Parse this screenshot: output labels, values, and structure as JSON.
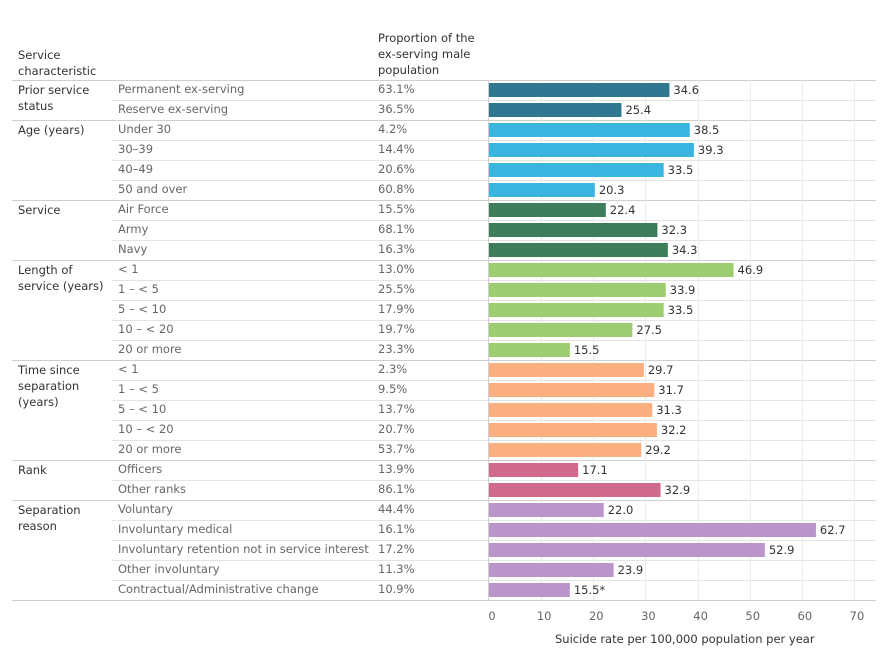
{
  "headers": {
    "characteristic": "Service characteristic",
    "proportion": "Proportion of the ex-serving male population"
  },
  "colors": {
    "Prior service status": "#2e7891",
    "Age (years)": "#3ab5e0",
    "Service": "#3d7d5a",
    "Length of service (years)": "#9ccd6f",
    "Time since separation (years)": "#fbae7f",
    "Rank": "#d0698a",
    "Separation reason": "#b995cc"
  },
  "chart_data": {
    "type": "bar",
    "orientation": "horizontal",
    "xlabel": "Suicide rate per 100,000 population per year",
    "xlim": [
      0,
      70
    ],
    "xticks": [
      0,
      10,
      20,
      30,
      40,
      50,
      60,
      70
    ],
    "groups": [
      {
        "name": "Prior service status",
        "rows": [
          {
            "label": "Permanent ex-serving",
            "proportion": "63.1%",
            "value": 34.6,
            "value_label": "34.6"
          },
          {
            "label": "Reserve ex-serving",
            "proportion": "36.5%",
            "value": 25.4,
            "value_label": "25.4"
          }
        ]
      },
      {
        "name": "Age (years)",
        "rows": [
          {
            "label": "Under 30",
            "proportion": "4.2%",
            "value": 38.5,
            "value_label": "38.5"
          },
          {
            "label": "30–39",
            "proportion": "14.4%",
            "value": 39.3,
            "value_label": "39.3"
          },
          {
            "label": "40–49",
            "proportion": "20.6%",
            "value": 33.5,
            "value_label": "33.5"
          },
          {
            "label": "50 and over",
            "proportion": "60.8%",
            "value": 20.3,
            "value_label": "20.3"
          }
        ]
      },
      {
        "name": "Service",
        "rows": [
          {
            "label": "Air Force",
            "proportion": "15.5%",
            "value": 22.4,
            "value_label": "22.4"
          },
          {
            "label": "Army",
            "proportion": "68.1%",
            "value": 32.3,
            "value_label": "32.3"
          },
          {
            "label": "Navy",
            "proportion": "16.3%",
            "value": 34.3,
            "value_label": "34.3"
          }
        ]
      },
      {
        "name": "Length of service (years)",
        "rows": [
          {
            "label": "< 1",
            "proportion": "13.0%",
            "value": 46.9,
            "value_label": "46.9"
          },
          {
            "label": "1 – < 5",
            "proportion": "25.5%",
            "value": 33.9,
            "value_label": "33.9"
          },
          {
            "label": "5 – < 10",
            "proportion": "17.9%",
            "value": 33.5,
            "value_label": "33.5"
          },
          {
            "label": "10 – < 20",
            "proportion": "19.7%",
            "value": 27.5,
            "value_label": "27.5"
          },
          {
            "label": "20 or more",
            "proportion": "23.3%",
            "value": 15.5,
            "value_label": "15.5"
          }
        ]
      },
      {
        "name": "Time since separation (years)",
        "rows": [
          {
            "label": "< 1",
            "proportion": "2.3%",
            "value": 29.7,
            "value_label": "29.7"
          },
          {
            "label": "1 – < 5",
            "proportion": "9.5%",
            "value": 31.7,
            "value_label": "31.7"
          },
          {
            "label": "5 – < 10",
            "proportion": "13.7%",
            "value": 31.3,
            "value_label": "31.3"
          },
          {
            "label": "10 – < 20",
            "proportion": "20.7%",
            "value": 32.2,
            "value_label": "32.2"
          },
          {
            "label": "20 or more",
            "proportion": "53.7%",
            "value": 29.2,
            "value_label": "29.2"
          }
        ]
      },
      {
        "name": "Rank",
        "rows": [
          {
            "label": "Officers",
            "proportion": "13.9%",
            "value": 17.1,
            "value_label": "17.1"
          },
          {
            "label": "Other ranks",
            "proportion": "86.1%",
            "value": 32.9,
            "value_label": "32.9"
          }
        ]
      },
      {
        "name": "Separation reason",
        "rows": [
          {
            "label": "Voluntary",
            "proportion": "44.4%",
            "value": 22.0,
            "value_label": "22.0"
          },
          {
            "label": "Involuntary medical",
            "proportion": "16.1%",
            "value": 62.7,
            "value_label": "62.7"
          },
          {
            "label": "Involuntary retention not in service interest",
            "proportion": "17.2%",
            "value": 52.9,
            "value_label": "52.9"
          },
          {
            "label": "Other involuntary",
            "proportion": "11.3%",
            "value": 23.9,
            "value_label": "23.9"
          },
          {
            "label": "Contractual/Administrative change",
            "proportion": "10.9%",
            "value": 15.5,
            "value_label": "15.5*"
          }
        ]
      }
    ]
  }
}
